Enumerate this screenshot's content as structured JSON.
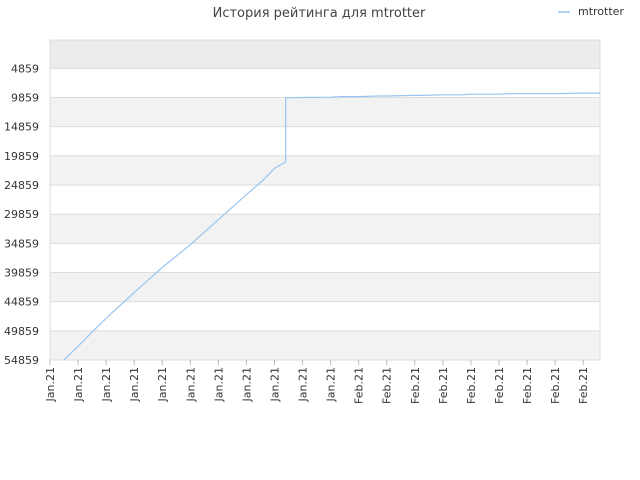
{
  "chart_data": {
    "type": "line",
    "title": "История рейтинга для mtrotter",
    "xlabel": "",
    "ylabel": "",
    "y_axis_reversed": true,
    "ylim": [
      0,
      54859
    ],
    "y_ticks": [
      "4859",
      "9859",
      "14859",
      "19859",
      "24859",
      "29859",
      "34859",
      "39859",
      "44859",
      "49859",
      "54859"
    ],
    "y_tick_values": [
      4859,
      9859,
      14859,
      19859,
      24859,
      29859,
      34859,
      39859,
      44859,
      49859,
      54859
    ],
    "x_ticks": [
      "Jan.21",
      "Jan.21",
      "Jan.21",
      "Jan.21",
      "Jan.21",
      "Jan.21",
      "Jan.21",
      "Jan.21",
      "Jan.21",
      "Jan.21",
      "Jan.21",
      "Feb.21",
      "Feb.21",
      "Feb.21",
      "Feb.21",
      "Feb.21",
      "Feb.21",
      "Feb.21",
      "Feb.21",
      "Feb.21"
    ],
    "grid": true,
    "legend_position": "top-right",
    "colors": {
      "series": "#99c4f0",
      "band_dark": "#f2f2f2",
      "band_top": "#ececec",
      "band_light": "#ffffff",
      "grid": "#dddddd"
    },
    "series": [
      {
        "name": "mtrotter",
        "x": [
          0.5,
          1.0,
          1.6,
          2.2,
          3.0,
          4.0,
          5.0,
          6.0,
          7.0,
          7.6,
          8.0,
          8.4,
          8.4,
          8.6,
          9.0,
          10.0,
          10.4,
          11.0,
          11.7,
          12.0,
          13.0,
          13.3,
          14.0,
          14.7,
          15.0,
          16.0,
          16.4,
          17.0,
          18.0,
          19.0,
          19.6
        ],
        "y": [
          54859,
          52500,
          49600,
          46800,
          43300,
          39000,
          35100,
          30800,
          26500,
          24000,
          22000,
          20900,
          9900,
          9900,
          9850,
          9800,
          9700,
          9700,
          9600,
          9600,
          9500,
          9500,
          9400,
          9400,
          9300,
          9300,
          9200,
          9200,
          9200,
          9100,
          9100
        ]
      }
    ]
  }
}
